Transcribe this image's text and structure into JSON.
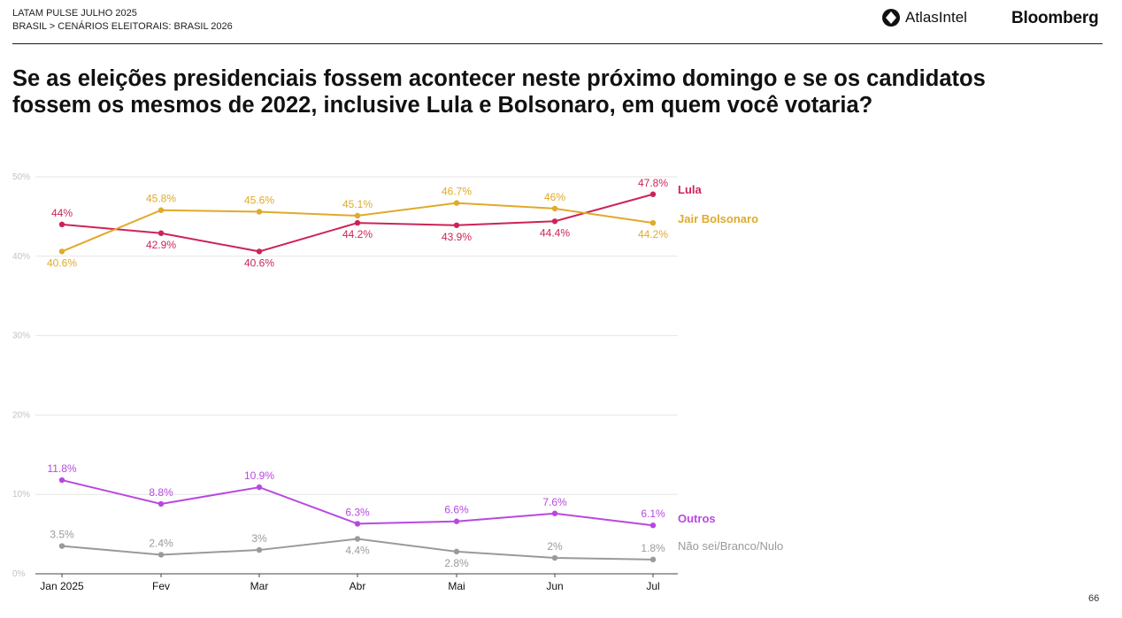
{
  "header": {
    "report": "LATAM PULSE JULHO 2025",
    "breadcrumb": "BRASIL > CENÁRIOS ELEITORAIS: BRASIL 2026",
    "brand_atlas": "AtlasIntel",
    "brand_atlas_icon": "atlas-logo-icon",
    "brand_bloomberg": "Bloomberg"
  },
  "question": "Se as eleições presidenciais fossem acontecer neste próximo domingo e se os candidatos fossem os mesmos de 2022, inclusive Lula e Bolsonaro, em quem você votaria?",
  "page_number": "66",
  "chart_data": {
    "type": "line",
    "categories": [
      "Jan 2025",
      "Fev",
      "Mar",
      "Abr",
      "Mai",
      "Jun",
      "Jul"
    ],
    "ylim": [
      0,
      50
    ],
    "y_ticks": [
      "0%",
      "10%",
      "20%",
      "30%",
      "40%",
      "50%"
    ],
    "grid": true,
    "legend": "right",
    "series": [
      {
        "name": "Lula",
        "color": "#cc2456",
        "values": [
          44,
          42.9,
          40.6,
          44.2,
          43.9,
          44.4,
          47.8
        ],
        "labels": [
          "44%",
          "42.9%",
          "40.6%",
          "44.2%",
          "43.9%",
          "44.4%",
          "47.8%"
        ]
      },
      {
        "name": "Jair Bolsonaro",
        "color": "#e0aa2a",
        "values": [
          40.6,
          45.8,
          45.6,
          45.1,
          46.7,
          46,
          44.2
        ],
        "labels": [
          "40.6%",
          "45.8%",
          "45.6%",
          "45.1%",
          "46.7%",
          "46%",
          "44.2%"
        ]
      },
      {
        "name": "Outros",
        "color": "#b948e0",
        "values": [
          11.8,
          8.8,
          10.9,
          6.3,
          6.6,
          7.6,
          6.1
        ],
        "labels": [
          "11.8%",
          "8.8%",
          "10.9%",
          "6.3%",
          "6.6%",
          "7.6%",
          "6.1%"
        ]
      },
      {
        "name": "Não sei/Branco/Nulo",
        "color": "#9a9a9a",
        "values": [
          3.5,
          2.4,
          3,
          4.4,
          2.8,
          2,
          1.8
        ],
        "labels": [
          "3.5%",
          "2.4%",
          "3%",
          "4.4%",
          "2.8%",
          "2%",
          "1.8%"
        ]
      }
    ]
  }
}
